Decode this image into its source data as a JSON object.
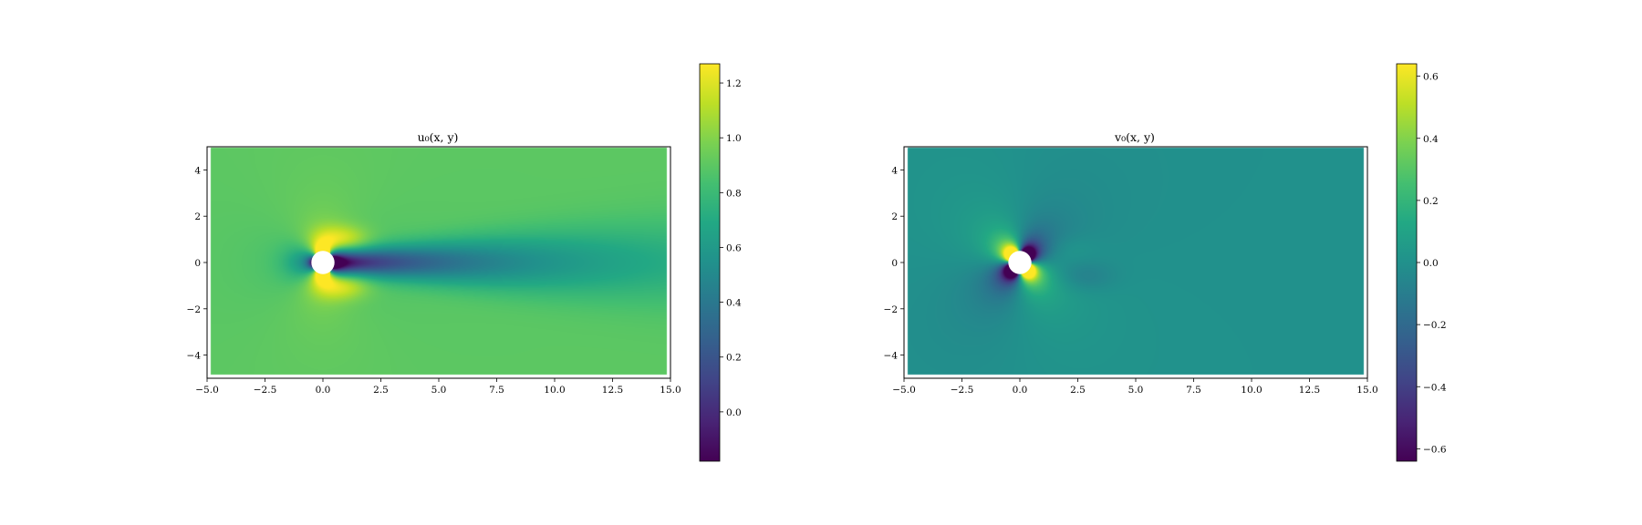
{
  "figure": {
    "background": "#ffffff"
  },
  "chart_data": [
    {
      "type": "heatmap",
      "title": "u₀(x, y)",
      "xlabel": "",
      "ylabel": "",
      "xlim": [
        -5.0,
        15.0
      ],
      "ylim": [
        -5.0,
        5.0
      ],
      "x_ticks": [
        "−5.0",
        "−2.5",
        "0.0",
        "2.5",
        "5.0",
        "7.5",
        "10.0",
        "12.5",
        "15.0"
      ],
      "y_ticks": [
        "−4",
        "−2",
        "0",
        "2",
        "4"
      ],
      "colormap": "viridis",
      "colorbar": {
        "range": [
          -0.18,
          1.27
        ],
        "ticks": [
          "0.0",
          "0.2",
          "0.4",
          "0.6",
          "0.8",
          "1.0",
          "1.2"
        ],
        "values": [
          0.0,
          0.2,
          0.4,
          0.6,
          0.8,
          1.0,
          1.2
        ]
      },
      "field": "u",
      "freestream": 0.9,
      "cylinder": {
        "center": [
          0,
          0
        ],
        "radius": 0.5
      },
      "grid": false
    },
    {
      "type": "heatmap",
      "title": "v₀(x, y)",
      "xlabel": "",
      "ylabel": "",
      "xlim": [
        -5.0,
        15.0
      ],
      "ylim": [
        -5.0,
        5.0
      ],
      "x_ticks": [
        "−5.0",
        "−2.5",
        "0.0",
        "2.5",
        "5.0",
        "7.5",
        "10.0",
        "12.5",
        "15.0"
      ],
      "y_ticks": [
        "−4",
        "−2",
        "0",
        "2",
        "4"
      ],
      "colormap": "viridis",
      "colorbar": {
        "range": [
          -0.64,
          0.64
        ],
        "ticks": [
          "−0.6",
          "−0.4",
          "−0.2",
          "0.0",
          "0.2",
          "0.4",
          "0.6"
        ],
        "values": [
          -0.6,
          -0.4,
          -0.2,
          0.0,
          0.2,
          0.4,
          0.6
        ]
      },
      "field": "v",
      "freestream": 0.0,
      "cylinder": {
        "center": [
          0,
          0
        ],
        "radius": 0.5
      },
      "grid": false
    }
  ]
}
